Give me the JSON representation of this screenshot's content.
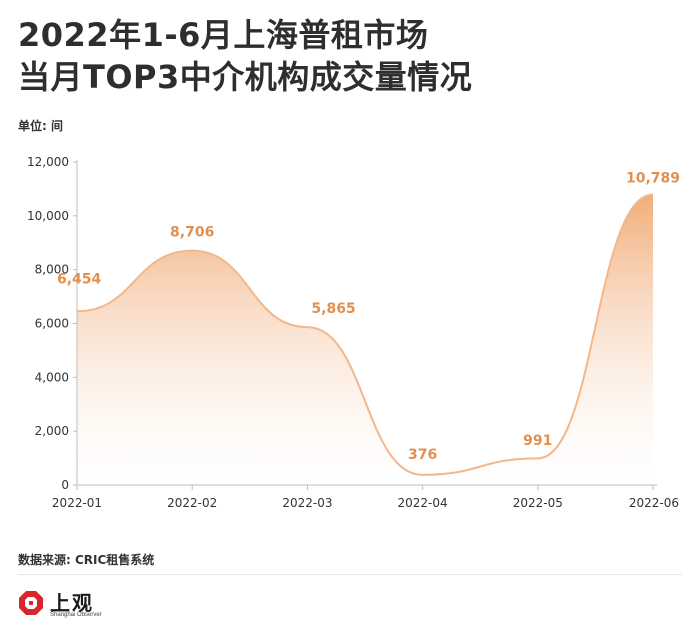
{
  "title_line1": "2022年1-6月上海普租市场",
  "title_line2": "当月TOP3中介机构成交量情况",
  "unit_label": "单位: 间",
  "source": "数据来源: CRIC租售系统",
  "logo": {
    "name_cn": "上观",
    "name_en": "Shanghai Observer",
    "color": "#d8262c"
  },
  "colors": {
    "line": "#f2b88c",
    "fill_top": "#f0a46a",
    "label": "#e2904f",
    "axis": "#bdbdbd",
    "text": "#333333"
  },
  "chart_data": {
    "type": "area",
    "categories": [
      "2022-01",
      "2022-02",
      "2022-03",
      "2022-04",
      "2022-05",
      "2022-06"
    ],
    "values": [
      6454,
      8706,
      5865,
      376,
      991,
      10789
    ],
    "value_labels": [
      "6,454",
      "8,706",
      "5,865",
      "376",
      "991",
      "10,789"
    ],
    "y_ticks": [
      "0",
      "2,000",
      "4,000",
      "6,000",
      "8,000",
      "10,000",
      "12,000"
    ],
    "ylim": [
      0,
      12000
    ],
    "grid": false,
    "legend": false,
    "smooth": true
  }
}
